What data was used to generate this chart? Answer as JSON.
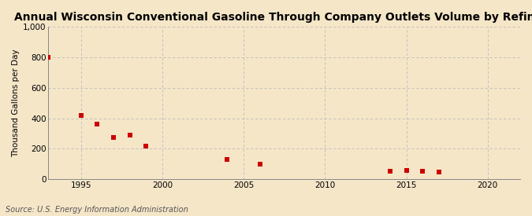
{
  "title": "Annual Wisconsin Conventional Gasoline Through Company Outlets Volume by Refiners",
  "ylabel": "Thousand Gallons per Day",
  "source": "Source: U.S. Energy Information Administration",
  "background_color": "#f5e6c8",
  "data_color": "#cc0000",
  "x_values": [
    1993,
    1995,
    1996,
    1997,
    1998,
    1999,
    2004,
    2006,
    2014,
    2015,
    2016,
    2017
  ],
  "y_values": [
    800,
    420,
    360,
    275,
    290,
    215,
    130,
    100,
    50,
    55,
    52,
    48
  ],
  "xlim": [
    1993,
    2022
  ],
  "ylim": [
    0,
    1000
  ],
  "yticks": [
    0,
    200,
    400,
    600,
    800,
    1000
  ],
  "ytick_labels": [
    "0",
    "200",
    "400",
    "600",
    "800",
    "1,000"
  ],
  "xticks": [
    1995,
    2000,
    2005,
    2010,
    2015,
    2020
  ],
  "grid_color": "#bbbbbb",
  "title_fontsize": 10,
  "label_fontsize": 7.5,
  "tick_fontsize": 7.5,
  "source_fontsize": 7,
  "marker_size": 4.5
}
